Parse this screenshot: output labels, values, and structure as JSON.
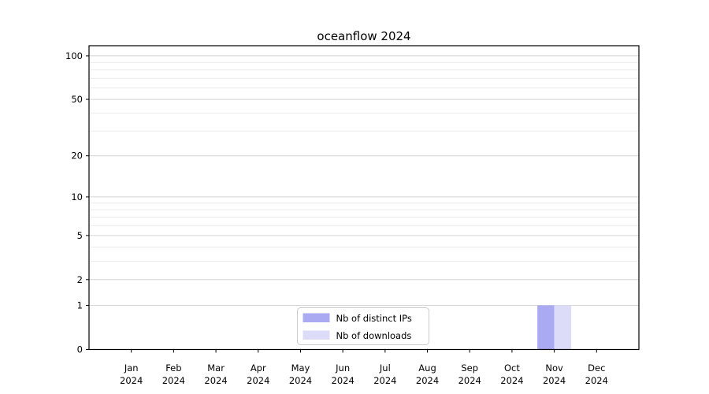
{
  "chart_data": {
    "type": "bar",
    "title": "oceanflow 2024",
    "x_tick_months": [
      "Jan",
      "Feb",
      "Mar",
      "Apr",
      "May",
      "Jun",
      "Jul",
      "Aug",
      "Sep",
      "Oct",
      "Nov",
      "Dec"
    ],
    "x_tick_year": "2024",
    "series": [
      {
        "name": "Nb of distinct IPs",
        "color": "#aaaaf2",
        "values": [
          0,
          0,
          0,
          0,
          0,
          0,
          0,
          0,
          0,
          0,
          1,
          0
        ]
      },
      {
        "name": "Nb of downloads",
        "color": "#dcdcf8",
        "values": [
          0,
          0,
          0,
          0,
          0,
          0,
          0,
          0,
          0,
          0,
          1,
          0
        ]
      }
    ],
    "y_scale": "log10(1+x)",
    "y_ticks": [
      0,
      1,
      2,
      5,
      10,
      20,
      50,
      100
    ],
    "y_minor_gridlines": [
      3,
      4,
      6,
      7,
      8,
      9,
      30,
      40,
      60,
      70,
      80,
      90
    ],
    "ylim": [
      0,
      117.5
    ],
    "grid": true,
    "legend": {
      "location": "lower center",
      "entries": [
        "Nb of distinct IPs",
        "Nb of downloads"
      ]
    },
    "colors": {
      "axis": "#000000",
      "grid_major": "#d4d4d4",
      "grid_minor": "#ececec",
      "legend_border": "#cccccc",
      "legend_background": "#ffffff"
    }
  }
}
